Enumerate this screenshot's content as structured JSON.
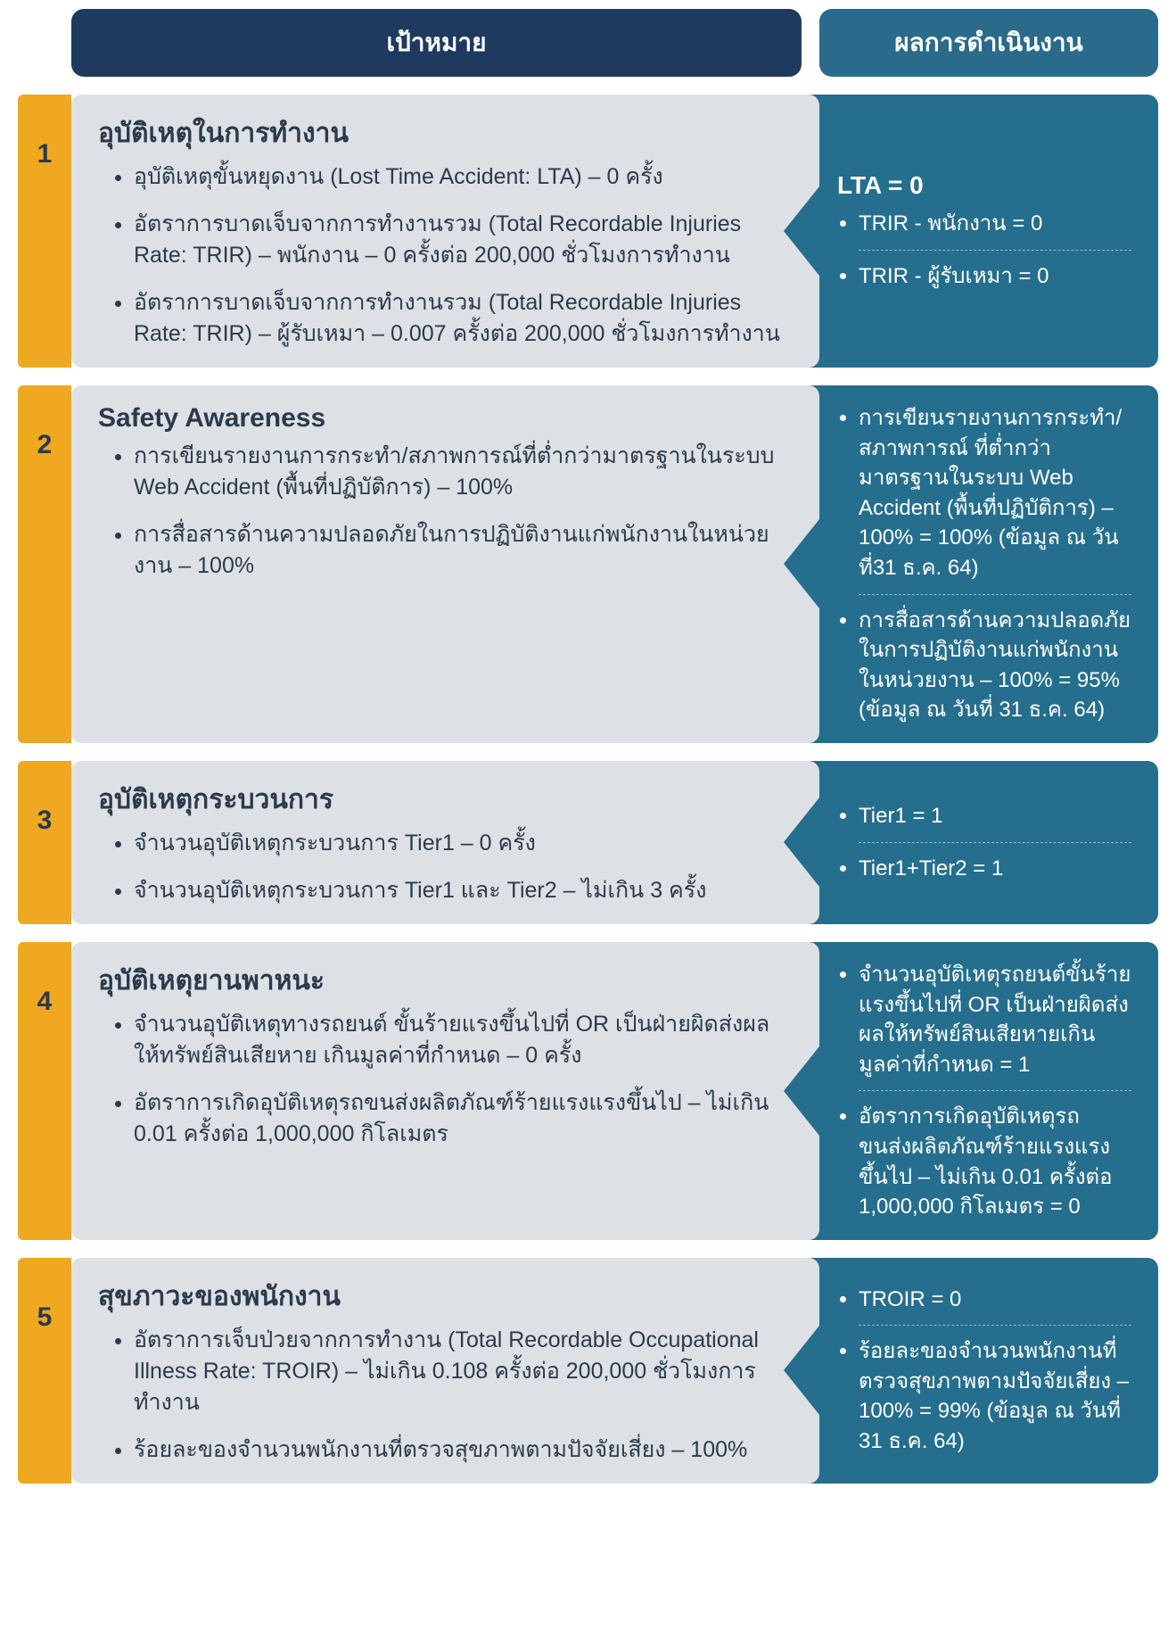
{
  "header": {
    "target_label": "เป้าหมาย",
    "result_label": "ผลการดำเนินงาน"
  },
  "colors": {
    "number_bg": "#f0a820",
    "target_bg": "#dde1e6",
    "result_bg": "#256e8e",
    "header_target_bg": "#1f3a5f",
    "header_result_bg": "#2a6a8a",
    "text_dark": "#2b3a4a",
    "text_light": "#ffffff"
  },
  "rows": [
    {
      "number": "1",
      "title": "อุบัติเหตุในการทำงาน",
      "target_items": [
        "อุบัติเหตุขั้นหยุดงาน (Lost Time Accident: LTA) – 0 ครั้ง",
        "อัตราการบาดเจ็บจากการทำงานรวม (Total Recordable Injuries Rate: TRIR) – พนักงาน – 0 ครั้งต่อ 200,000 ชั่วโมงการทำงาน",
        "อัตราการบาดเจ็บจากการทำงานรวม (Total Recordable Injuries Rate: TRIR) – ผู้รับเหมา – 0.007 ครั้งต่อ 200,000 ชั่วโมงการทำงาน"
      ],
      "result_title": "LTA = 0",
      "result_items": [
        "TRIR - พนักงาน = 0",
        "TRIR - ผู้รับเหมา = 0"
      ]
    },
    {
      "number": "2",
      "title": "Safety Awareness",
      "target_items": [
        "การเขียนรายงานการกระทำ/สภาพการณ์ที่ต่ำกว่ามาตรฐานในระบบ Web Accident (พื้นที่ปฏิบัติการ) – 100%",
        "การสื่อสารด้านความปลอดภัยในการปฏิบัติงานแก่พนักงานในหน่วยงาน – 100%"
      ],
      "result_title": "",
      "result_items": [
        "การเขียนรายงานการกระทำ/สภาพการณ์ ที่ต่ำกว่ามาตรฐานในระบบ Web Accident (พื้นที่ปฏิบัติการ) – 100% = 100% (ข้อมูล ณ วันที่31 ธ.ค. 64)",
        "การสื่อสารด้านความปลอดภัยในการปฏิบัติงานแก่พนักงานในหน่วยงาน – 100% =  95% (ข้อมูล ณ วันที่ 31 ธ.ค. 64)"
      ]
    },
    {
      "number": "3",
      "title": "อุบัติเหตุกระบวนการ",
      "target_items": [
        "จำนวนอุบัติเหตุกระบวนการ Tier1 – 0 ครั้ง",
        "จำนวนอุบัติเหตุกระบวนการ Tier1 และ Tier2 – ไม่เกิน 3 ครั้ง"
      ],
      "result_title": "",
      "result_items": [
        "Tier1 = 1",
        "Tier1+Tier2 = 1"
      ]
    },
    {
      "number": "4",
      "title": "อุบัติเหตุยานพาหนะ",
      "target_items": [
        "จำนวนอุบัติเหตุทางรถยนต์ ขั้นร้ายแรงขึ้นไปที่ OR เป็นฝ่ายผิดส่งผลให้ทรัพย์สินเสียหาย เกินมูลค่าที่กำหนด – 0 ครั้ง",
        "อัตราการเกิดอุบัติเหตุรถขนส่งผลิตภัณฑ์ร้ายแรงแรงขึ้นไป – ไม่เกิน 0.01 ครั้งต่อ 1,000,000 กิโลเมตร"
      ],
      "result_title": "",
      "result_items": [
        "จำนวนอุบัติเหตุรถยนต์ขั้นร้ายแรงขึ้นไปที่ OR เป็นฝ่ายผิดส่งผลให้ทรัพย์สินเสียหายเกินมูลค่าที่กำหนด = 1",
        "อัตราการเกิดอุบัติเหตุรถขนส่งผลิตภัณฑ์ร้ายแรงแรงขึ้นไป – ไม่เกิน 0.01 ครั้งต่อ 1,000,000 กิโลเมตร = 0"
      ]
    },
    {
      "number": "5",
      "title": "สุขภาวะของพนักงาน",
      "target_items": [
        "อัตราการเจ็บป่วยจากการทำงาน (Total Recordable Occupational Illness Rate: TROIR) – ไม่เกิน 0.108 ครั้งต่อ 200,000 ชั่วโมงการทำงาน",
        "ร้อยละของจำนวนพนักงานที่ตรวจสุขภาพตามปัจจัยเสี่ยง – 100%"
      ],
      "result_title": "",
      "result_items": [
        "TROIR = 0",
        "ร้อยละของจำนวนพนักงานที่ตรวจสุขภาพตามปัจจัยเสี่ยง – 100% =  99% (ข้อมูล ณ วันที่ 31 ธ.ค. 64)"
      ]
    }
  ]
}
